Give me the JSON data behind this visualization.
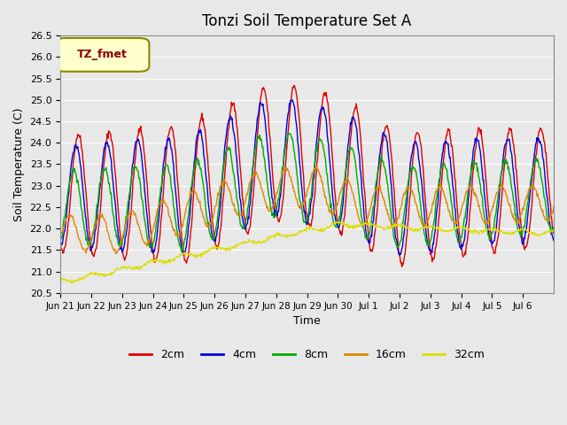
{
  "title": "Tonzi Soil Temperature Set A",
  "xlabel": "Time",
  "ylabel": "Soil Temperature (C)",
  "ylim": [
    20.5,
    26.5
  ],
  "legend_label": "TZ_fmet",
  "series_labels": [
    "2cm",
    "4cm",
    "8cm",
    "16cm",
    "32cm"
  ],
  "series_colors": [
    "#dd0000",
    "#0000dd",
    "#00aa00",
    "#dd8800",
    "#dddd00"
  ],
  "bg_color": "#e8e8e8",
  "xtick_labels": [
    "Jun 21",
    "Jun 22",
    "Jun 23",
    "Jun 24",
    "Jun 25",
    "Jun 26",
    "Jun 27",
    "Jun 28",
    "Jun 29",
    "Jun 30",
    "Jul 1",
    "Jul 2",
    "Jul 3",
    "Jul 4",
    "Jul 5",
    "Jul 6"
  ],
  "n_days": 16,
  "pts_per_day": 48
}
